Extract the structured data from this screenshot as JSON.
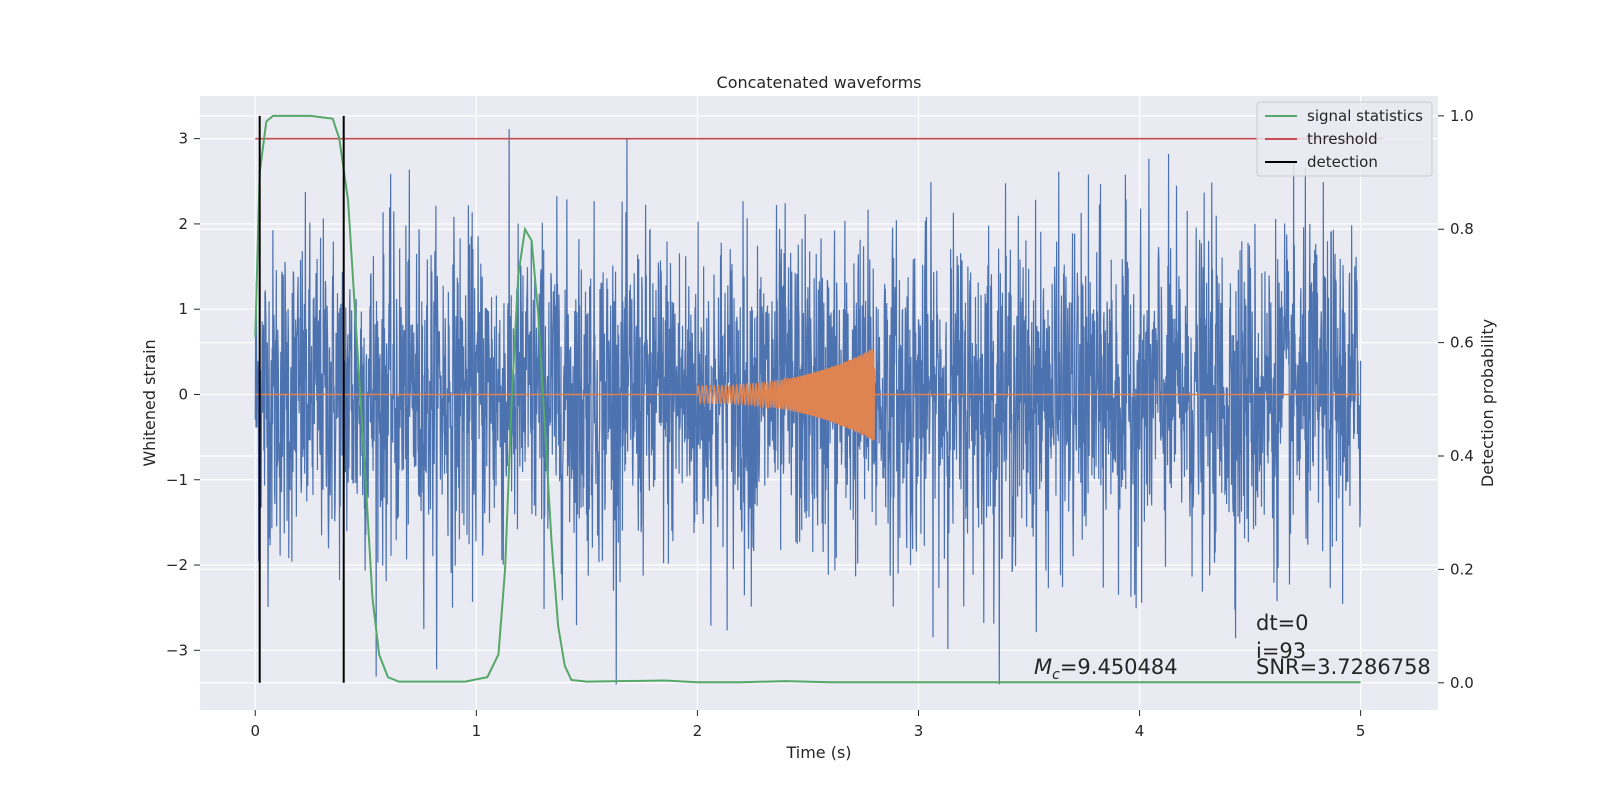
{
  "chart_data": {
    "type": "line",
    "title": "Concatenated waveforms",
    "xlabel": "Time (s)",
    "ylabel": "Whitened strain",
    "y2label": "Detection probability",
    "xlim": [
      -0.25,
      5.35
    ],
    "ylim": [
      -3.7,
      3.5
    ],
    "y2lim": [
      -0.048,
      1.035
    ],
    "xticks": [
      0,
      1,
      2,
      3,
      4,
      5
    ],
    "yticks": [
      -3,
      -2,
      -1,
      0,
      1,
      2,
      3
    ],
    "y2ticks": [
      0.0,
      0.2,
      0.4,
      0.6,
      0.8,
      1.0
    ],
    "grid": true,
    "legend_position": "top-right",
    "series": [
      {
        "name": "strain",
        "axis": "left",
        "color": "#4c72b0",
        "description_kind": "whitened noise",
        "t_range": [
          0,
          5
        ],
        "noise_sigma": 0.95,
        "envelope": [
          -3.4,
          3.3
        ]
      },
      {
        "name": "injected signal",
        "axis": "left",
        "color": "#dd8452",
        "t_range": [
          0,
          5
        ],
        "chirp_start": 2.0,
        "chirp_end": 2.8,
        "amp_start": 0.1,
        "amp_end": 0.55
      },
      {
        "name": "signal statistics",
        "axis": "right",
        "color": "#55a868",
        "x": [
          0,
          0.02,
          0.05,
          0.08,
          0.15,
          0.25,
          0.35,
          0.38,
          0.42,
          0.46,
          0.5,
          0.53,
          0.56,
          0.6,
          0.65,
          0.8,
          0.95,
          1.05,
          1.1,
          1.13,
          1.16,
          1.19,
          1.22,
          1.25,
          1.28,
          1.31,
          1.34,
          1.37,
          1.4,
          1.43,
          1.5,
          1.85,
          2.0,
          2.2,
          2.4,
          2.6,
          3.0,
          3.5,
          4.0,
          4.5,
          5.0
        ],
        "y": [
          0.61,
          0.9,
          0.99,
          1.0,
          1.0,
          1.0,
          0.995,
          0.96,
          0.85,
          0.6,
          0.35,
          0.15,
          0.05,
          0.01,
          0.002,
          0.002,
          0.002,
          0.01,
          0.05,
          0.2,
          0.5,
          0.72,
          0.8,
          0.78,
          0.65,
          0.45,
          0.25,
          0.1,
          0.03,
          0.005,
          0.002,
          0.004,
          0.001,
          0.001,
          0.003,
          0.001,
          0.001,
          0.001,
          0.001,
          0.001,
          0.001
        ]
      },
      {
        "name": "threshold",
        "axis": "left",
        "color": "#c44e52",
        "x": [
          0,
          5.1
        ],
        "y": [
          3,
          3
        ]
      },
      {
        "name": "detection",
        "axis": "right",
        "color": "#000000",
        "x_lines": [
          0.02,
          0.4
        ],
        "y_range": [
          0,
          1
        ]
      }
    ],
    "legend": [
      {
        "label": "signal statistics",
        "color": "#55a868"
      },
      {
        "label": "threshold",
        "color": "#c44e52"
      },
      {
        "label": "detection",
        "color": "#000000"
      }
    ],
    "annotations": {
      "mc_symbol": "M",
      "mc_sub": "c",
      "mc_value": "=9.450484",
      "dt": "dt=0",
      "i": "i=93",
      "snr": "SNR=3.7286758"
    },
    "colors": {
      "plot_bg": "#eaeaf2",
      "grid": "#ffffff"
    }
  }
}
